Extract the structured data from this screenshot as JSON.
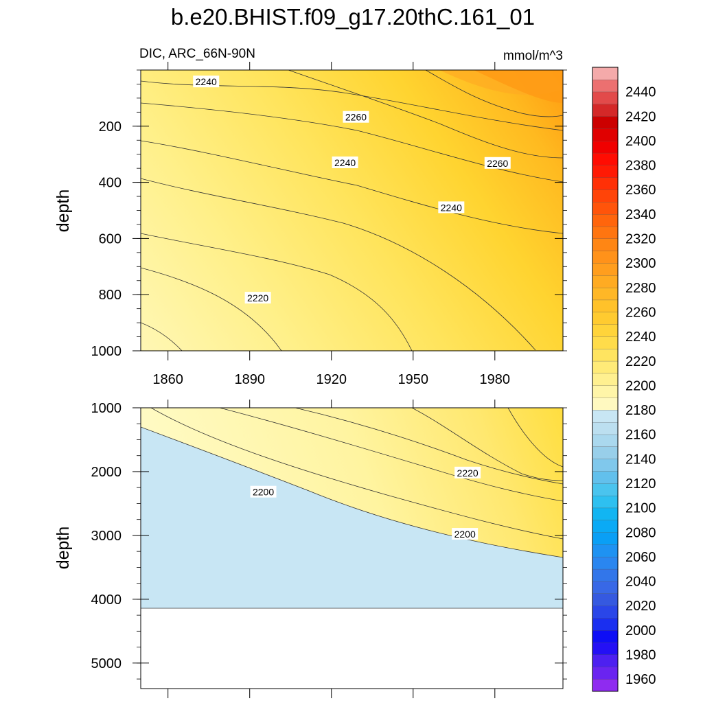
{
  "chart_data": {
    "type": "contour",
    "title": "b.e20.BHIST.f09_g17.20thC.161_01",
    "variable_label": "DIC, ARC_66N-90N",
    "units": "mmol/m^3",
    "xlabel": "",
    "ylabel": "depth",
    "x_range": [
      1850,
      2005
    ],
    "x_ticks": [
      1860,
      1890,
      1920,
      1950,
      1980
    ],
    "panels": [
      {
        "name": "upper",
        "ylim": [
          0,
          1000
        ],
        "y_ticks": [
          200,
          400,
          600,
          800,
          1000
        ],
        "contour_labels": [
          {
            "value": "2240",
            "year": 1874,
            "depth": 42
          },
          {
            "value": "2260",
            "year": 1929,
            "depth": 168
          },
          {
            "value": "2240",
            "year": 1925,
            "depth": 330
          },
          {
            "value": "2260",
            "year": 1981,
            "depth": 332
          },
          {
            "value": "2240",
            "year": 1964,
            "depth": 490
          },
          {
            "value": "2220",
            "year": 1893,
            "depth": 812
          }
        ]
      },
      {
        "name": "lower",
        "ylim": [
          1000,
          5400
        ],
        "y_ticks": [
          1000,
          2000,
          3000,
          4000,
          5000
        ],
        "ocean_bottom_depth": 4120,
        "contour_labels": [
          {
            "value": "2220",
            "year": 1970,
            "depth": 2020
          },
          {
            "value": "2200",
            "year": 1895,
            "depth": 2320
          },
          {
            "value": "2200",
            "year": 1969,
            "depth": 2980
          }
        ]
      }
    ],
    "colorbar": {
      "min": 1950,
      "max": 2460,
      "step": 10,
      "tick_labels": [
        "2440",
        "2420",
        "2400",
        "2380",
        "2360",
        "2340",
        "2320",
        "2300",
        "2280",
        "2260",
        "2240",
        "2220",
        "2200",
        "2180",
        "2160",
        "2140",
        "2120",
        "2100",
        "2080",
        "2060",
        "2040",
        "2020",
        "2000",
        "1980",
        "1960"
      ],
      "colors": [
        "#8f2bf0",
        "#6a24f0",
        "#4d20f0",
        "#2410f5",
        "#0e0ef5",
        "#1a2ff0",
        "#2a46e8",
        "#3559e0",
        "#3868e6",
        "#3276ea",
        "#2a86f0",
        "#1e92f2",
        "#0a9ff5",
        "#0aaaf5",
        "#12b5f2",
        "#2ec0f0",
        "#4ac4ee",
        "#62c0ec",
        "#80c8ec",
        "#98cfea",
        "#aad8ee",
        "#bcdff0",
        "#c8e6f4",
        "#fff9c0",
        "#fff5a8",
        "#fff090",
        "#ffeb78",
        "#ffe460",
        "#ffdc4a",
        "#ffd43a",
        "#ffcb30",
        "#ffc22a",
        "#ffb726",
        "#ffab22",
        "#ff9e1e",
        "#ff921a",
        "#ff8614",
        "#ff7510",
        "#ff650c",
        "#ff540a",
        "#ff4408",
        "#ff3006",
        "#ff1a04",
        "#ff0c02",
        "#f00000",
        "#e00000",
        "#cc0000",
        "#d42828",
        "#e24a4a",
        "#ec7070",
        "#f4aaaa"
      ]
    }
  }
}
